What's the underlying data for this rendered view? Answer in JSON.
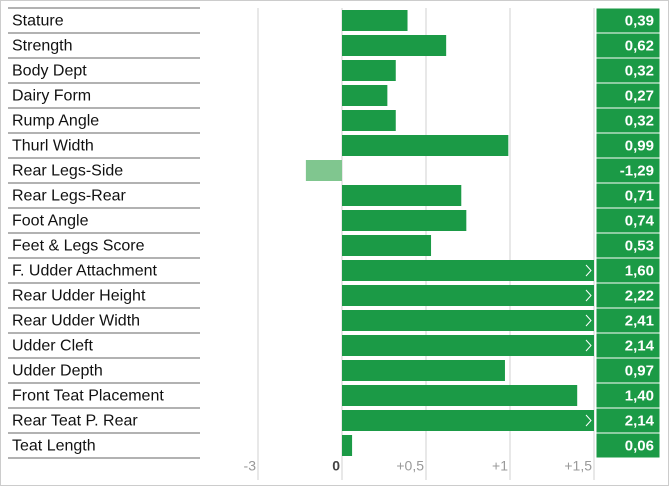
{
  "chart_data": {
    "type": "bar",
    "orientation": "horizontal",
    "categories": [
      "Stature",
      "Strength",
      "Body Dept",
      "Dairy Form",
      "Rump Angle",
      "Thurl Width",
      "Rear Legs-Side",
      "Rear Legs-Rear",
      "Foot Angle",
      "Feet & Legs Score",
      "F. Udder Attachment",
      "Rear Udder Height",
      "Rear Udder Width",
      "Udder Cleft",
      "Udder Depth",
      "Front Teat Placement",
      "Rear Teat P. Rear",
      "Teat Length"
    ],
    "values": [
      0.39,
      0.62,
      0.32,
      0.27,
      0.32,
      0.99,
      -1.29,
      0.71,
      0.74,
      0.53,
      1.6,
      2.22,
      2.41,
      2.14,
      0.97,
      1.4,
      2.14,
      0.06
    ],
    "value_labels": [
      "0,39",
      "0,62",
      "0,32",
      "0,27",
      "0,32",
      "0,99",
      "-1,29",
      "0,71",
      "0,74",
      "0,53",
      "1,60",
      "2,22",
      "2,41",
      "2,14",
      "0,97",
      "1,40",
      "2,14",
      "0,06"
    ],
    "color": "#1b9a46",
    "negative_color": "#80c68f",
    "xlim": [
      -3,
      1.5
    ],
    "xticks": [
      -3,
      0,
      {
        "value": 0.5,
        "label": "+0,5"
      },
      {
        "value": 1,
        "label": "+1"
      },
      {
        "value": 1.5,
        "label": "+1,5"
      }
    ],
    "grid": true
  }
}
